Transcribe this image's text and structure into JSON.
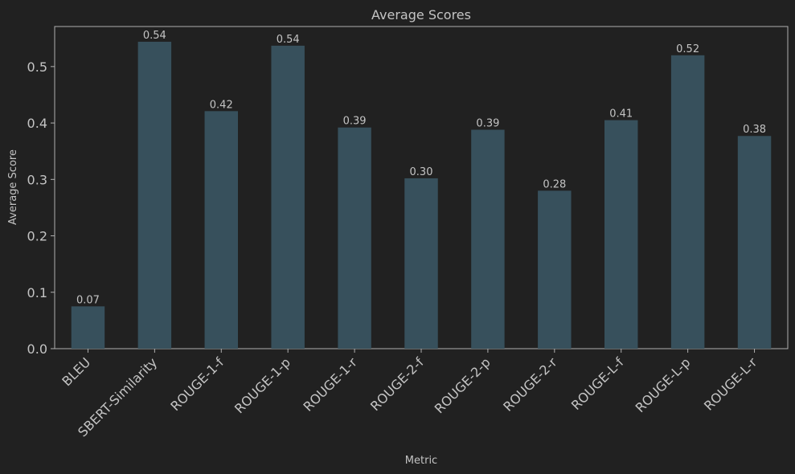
{
  "chart_data": {
    "type": "bar",
    "title": "Average Scores",
    "xlabel": "Metric",
    "ylabel": "Average Score",
    "categories": [
      "BLEU",
      "SBERT-Similarity",
      "ROUGE-1-f",
      "ROUGE-1-p",
      "ROUGE-1-r",
      "ROUGE-2-f",
      "ROUGE-2-p",
      "ROUGE-2-r",
      "ROUGE-L-f",
      "ROUGE-L-p",
      "ROUGE-L-r"
    ],
    "values": [
      0.075,
      0.544,
      0.421,
      0.537,
      0.392,
      0.302,
      0.388,
      0.28,
      0.405,
      0.52,
      0.377
    ],
    "value_labels": [
      "0.07",
      "0.54",
      "0.42",
      "0.54",
      "0.39",
      "0.30",
      "0.39",
      "0.28",
      "0.41",
      "0.52",
      "0.38"
    ],
    "yticks": [
      0.0,
      0.1,
      0.2,
      0.3,
      0.4,
      0.5
    ],
    "ytick_labels": [
      "0.0",
      "0.1",
      "0.2",
      "0.3",
      "0.4",
      "0.5"
    ],
    "ylim": [
      0,
      0.571
    ],
    "grid": false,
    "legend": "none",
    "colors": {
      "background": "#212121",
      "bar": "#37505c",
      "axis": "#b0b0b0",
      "text": "#c4c4c4"
    }
  }
}
